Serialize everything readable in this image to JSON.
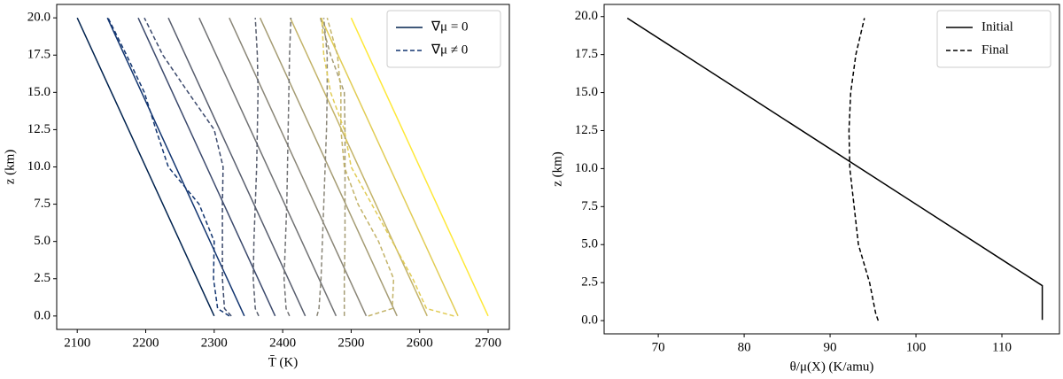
{
  "chart_data": [
    {
      "type": "line",
      "xlabel": "T̄  (K)",
      "ylabel": "z (km)",
      "xlim": [
        2070,
        2731
      ],
      "ylim": [
        -0.9,
        20.9
      ],
      "xticks": [
        2100,
        2200,
        2300,
        2400,
        2500,
        2600,
        2700
      ],
      "yticks": [
        {
          "value": 0,
          "label": "0.0"
        },
        {
          "value": 2.5,
          "label": "2.5"
        },
        {
          "value": 5,
          "label": "5.0"
        },
        {
          "value": 7.5,
          "label": "7.5"
        },
        {
          "value": 10,
          "label": "10.0"
        },
        {
          "value": 12.5,
          "label": "12.5"
        },
        {
          "value": 15,
          "label": "15.0"
        },
        {
          "value": 17.5,
          "label": "17.5"
        },
        {
          "value": 20,
          "label": "20.0"
        }
      ],
      "series": [
        {
          "color": "#00224e",
          "dash": false,
          "x": [
            2300,
            2100
          ],
          "values": [
            0,
            20
          ]
        },
        {
          "color": "#123570",
          "dash": false,
          "x": [
            2344,
            2144
          ],
          "values": [
            0,
            20
          ]
        },
        {
          "color": "#3b496c",
          "dash": false,
          "x": [
            2389,
            2189
          ],
          "values": [
            0,
            20
          ]
        },
        {
          "color": "#575d6d",
          "dash": false,
          "x": [
            2433,
            2233
          ],
          "values": [
            0,
            20
          ]
        },
        {
          "color": "#707173",
          "dash": false,
          "x": [
            2478,
            2278
          ],
          "values": [
            0,
            20
          ]
        },
        {
          "color": "#8a8678",
          "dash": false,
          "x": [
            2522,
            2322
          ],
          "values": [
            0,
            20
          ]
        },
        {
          "color": "#a59c74",
          "dash": false,
          "x": [
            2567,
            2367
          ],
          "values": [
            0,
            20
          ]
        },
        {
          "color": "#c3b369",
          "dash": false,
          "x": [
            2611,
            2411
          ],
          "values": [
            0,
            20
          ]
        },
        {
          "color": "#e1cc55",
          "dash": false,
          "x": [
            2656,
            2456
          ],
          "values": [
            0,
            20
          ]
        },
        {
          "color": "#fee838",
          "dash": false,
          "x": [
            2700,
            2500
          ],
          "values": [
            0,
            20
          ]
        },
        {
          "color": "#123570",
          "dash": true,
          "x": [
            2322,
            2305,
            2299,
            2300,
            2278,
            2233,
            2215,
            2198,
            2172,
            2145
          ],
          "values": [
            0,
            0.5,
            2.5,
            5,
            7.5,
            10,
            12.5,
            15,
            17.5,
            20
          ]
        },
        {
          "color": "#3b496c",
          "dash": true,
          "x": [
            2325,
            2315,
            2312,
            2312,
            2312,
            2313,
            2300,
            2262,
            2225,
            2198
          ],
          "values": [
            0,
            0.5,
            2.5,
            5,
            7.5,
            10,
            12.5,
            15,
            17.5,
            20
          ]
        },
        {
          "color": "#575d6d",
          "dash": true,
          "x": [
            2365,
            2360,
            2357,
            2358,
            2360,
            2362,
            2363,
            2364,
            2363,
            2360
          ],
          "values": [
            0,
            0.5,
            2.5,
            5,
            7.5,
            10,
            12.5,
            15,
            17.5,
            20
          ]
        },
        {
          "color": "#707173",
          "dash": true,
          "x": [
            2410,
            2405,
            2402,
            2404,
            2406,
            2407,
            2408,
            2409,
            2410,
            2412
          ],
          "values": [
            0,
            0.5,
            2.5,
            5,
            7.5,
            10,
            12.5,
            15,
            17.5,
            20
          ]
        },
        {
          "color": "#8a8678",
          "dash": true,
          "x": [
            2450,
            2453,
            2456,
            2458,
            2460,
            2462,
            2464,
            2465,
            2465,
            2460
          ],
          "values": [
            0,
            0.5,
            2.5,
            5,
            7.5,
            10,
            12.5,
            15,
            17.5,
            20
          ]
        },
        {
          "color": "#a59c74",
          "dash": true,
          "x": [
            2490,
            2490,
            2490,
            2491,
            2491,
            2491,
            2491,
            2490,
            2470,
            2455
          ],
          "values": [
            0,
            0.5,
            2.5,
            5,
            7.5,
            10,
            12.5,
            15,
            17.5,
            20
          ]
        },
        {
          "color": "#c3b369",
          "dash": true,
          "x": [
            2525,
            2560,
            2562,
            2540,
            2510,
            2490,
            2485,
            2485,
            2480,
            2465
          ],
          "values": [
            0,
            0.5,
            2.5,
            5,
            7.5,
            10,
            12.5,
            15,
            17.5,
            20
          ]
        },
        {
          "color": "#e1cc55",
          "dash": true,
          "x": [
            2650,
            2610,
            2590,
            2560,
            2530,
            2500,
            2490,
            2470,
            2460,
            2457
          ],
          "values": [
            0,
            0.5,
            2.5,
            5,
            7.5,
            10,
            12.5,
            15,
            17.5,
            20
          ]
        }
      ],
      "legend": {
        "position": "upper right",
        "entries": [
          {
            "label": "∇μ = 0",
            "color": "#00224e",
            "dash": false
          },
          {
            "label": "∇μ ≠ 0",
            "color": "#123570",
            "dash": true
          }
        ]
      }
    },
    {
      "type": "line",
      "xlabel": "θ/μ(X)  (K/amu)",
      "ylabel": "z (km)",
      "xlim": [
        63.7,
        116.7
      ],
      "ylim": [
        -0.87,
        20.8
      ],
      "xticks": [
        70,
        80,
        90,
        100,
        110
      ],
      "yticks": [
        {
          "value": 0,
          "label": "0.0"
        },
        {
          "value": 2.5,
          "label": "2.5"
        },
        {
          "value": 5,
          "label": "5.0"
        },
        {
          "value": 7.5,
          "label": "7.5"
        },
        {
          "value": 10,
          "label": "10.0"
        },
        {
          "value": 12.5,
          "label": "12.5"
        },
        {
          "value": 15,
          "label": "15.0"
        },
        {
          "value": 17.5,
          "label": "17.5"
        },
        {
          "value": 20,
          "label": "20.0"
        }
      ],
      "series": [
        {
          "name": "Initial",
          "color": "#000000",
          "dash": false,
          "x": [
            66.4,
            114.7,
            114.7
          ],
          "values": [
            19.9,
            2.3,
            0.05
          ]
        },
        {
          "name": "Final",
          "color": "#000000",
          "dash": true,
          "x": [
            95.6,
            95.3,
            94.6,
            93.3,
            92.8,
            92.3,
            92.2,
            92.4,
            93.0,
            94.0
          ],
          "values": [
            0,
            0.5,
            2.5,
            5,
            7.5,
            10,
            12.5,
            15,
            17.5,
            19.9
          ]
        }
      ],
      "legend": {
        "position": "upper right"
      }
    }
  ]
}
